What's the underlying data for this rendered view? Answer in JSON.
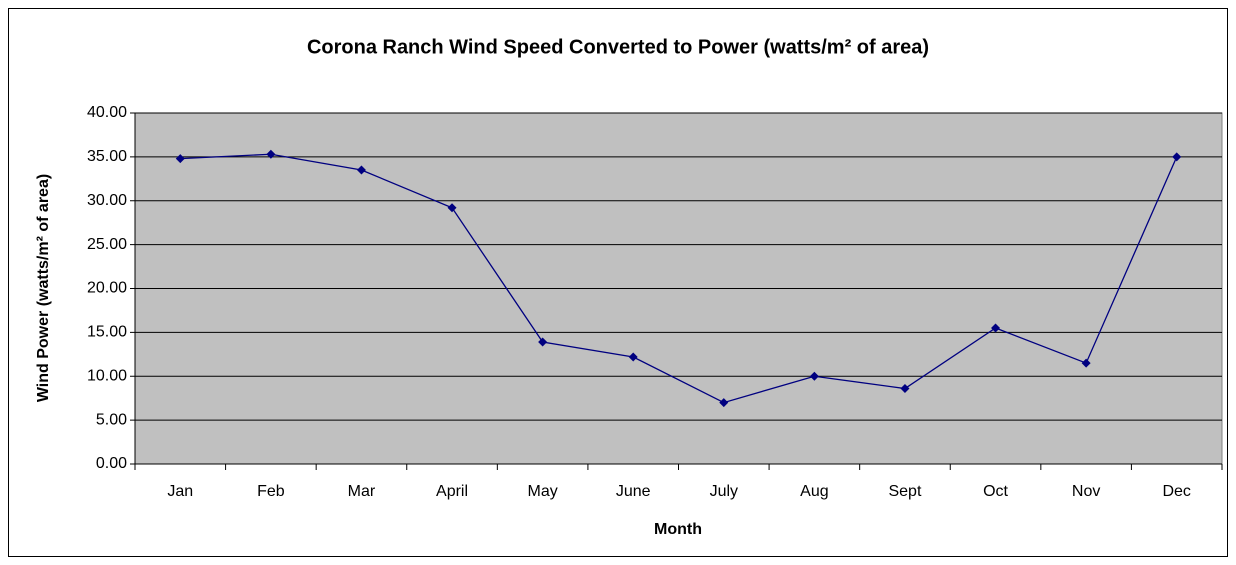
{
  "chart_data": {
    "type": "line",
    "title": "Corona Ranch Wind Speed Converted to Power (watts/m² of area)",
    "x_label": "Month",
    "y_label": "Wind Power (watts/m² of area)",
    "categories": [
      "Jan",
      "Feb",
      "Mar",
      "April",
      "May",
      "June",
      "July",
      "Aug",
      "Sept",
      "Oct",
      "Nov",
      "Dec"
    ],
    "series": [
      {
        "name": "Wind Power",
        "color": "#000080",
        "values": [
          34.8,
          35.3,
          33.5,
          29.2,
          13.9,
          12.2,
          7.0,
          10.0,
          8.6,
          15.5,
          11.5,
          35.0
        ]
      }
    ],
    "ylim": [
      0,
      40
    ],
    "yticks": [
      {
        "value": 0,
        "label": "0.00"
      },
      {
        "value": 5,
        "label": "5.00"
      },
      {
        "value": 10,
        "label": "10.00"
      },
      {
        "value": 15,
        "label": "15.00"
      },
      {
        "value": 20,
        "label": "20.00"
      },
      {
        "value": 25,
        "label": "25.00"
      },
      {
        "value": 30,
        "label": "30.00"
      },
      {
        "value": 35,
        "label": "35.00"
      },
      {
        "value": 40,
        "label": "40.00"
      }
    ],
    "grid": true,
    "plot_background": "#c0c0c0"
  }
}
